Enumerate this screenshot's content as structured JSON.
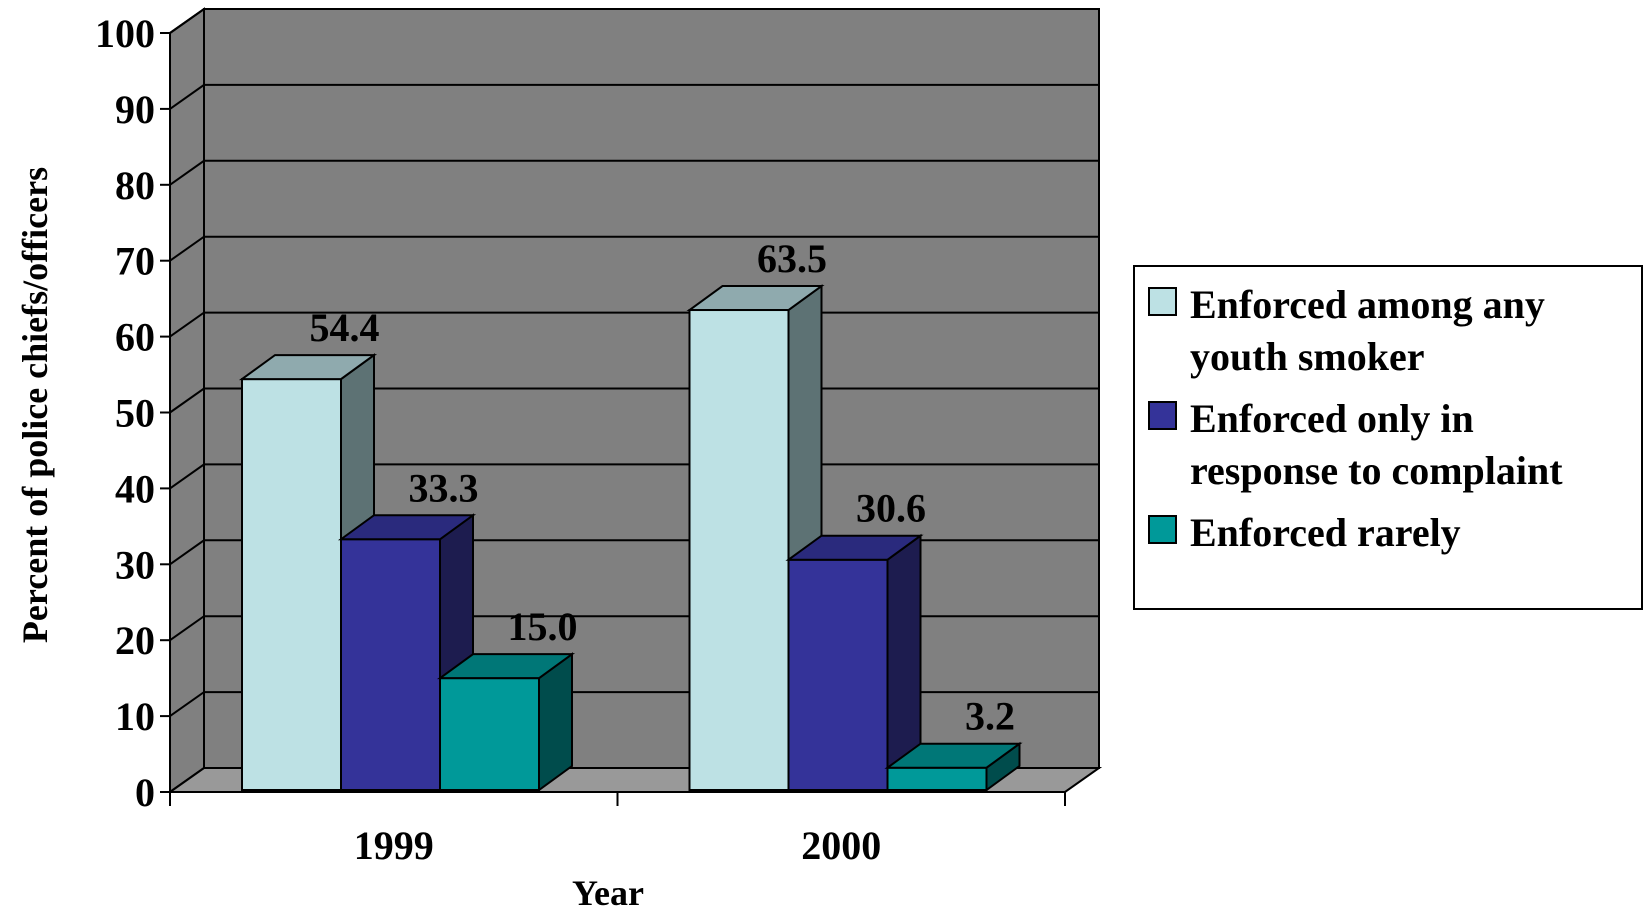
{
  "chart_data": {
    "type": "bar",
    "three_d": true,
    "title": "",
    "xlabel": "Year",
    "ylabel": "Percent of police chiefs/officers",
    "categories": [
      "1999",
      "2000"
    ],
    "ylim": [
      0,
      100
    ],
    "yticks": [
      "0",
      "10",
      "20",
      "30",
      "40",
      "50",
      "60",
      "70",
      "80",
      "90",
      "100"
    ],
    "grid": true,
    "legend_position": "right",
    "series": [
      {
        "name": "Enforced among any youth smoker",
        "legend_lines": [
          "Enforced among any",
          "youth smoker"
        ],
        "values": [
          54.4,
          63.5
        ],
        "labels": [
          "54.4",
          "63.5"
        ],
        "color": "#BDE1E4",
        "side_color": "#5D7274",
        "top_color": "#8FAAAE"
      },
      {
        "name": "Enforced only in response to complaint",
        "legend_lines": [
          "Enforced only in",
          "response to complaint"
        ],
        "values": [
          33.3,
          30.6
        ],
        "labels": [
          "33.3",
          "30.6"
        ],
        "color": "#343399",
        "side_color": "#1D1C4F",
        "top_color": "#2A2A7D"
      },
      {
        "name": "Enforced rarely",
        "legend_lines": [
          "Enforced rarely"
        ],
        "values": [
          15.0,
          3.2
        ],
        "labels": [
          "15.0",
          "3.2"
        ],
        "color": "#009999",
        "side_color": "#004C4C",
        "top_color": "#007777"
      }
    ],
    "plot_background": "#808080",
    "floor_color": "#999999"
  }
}
